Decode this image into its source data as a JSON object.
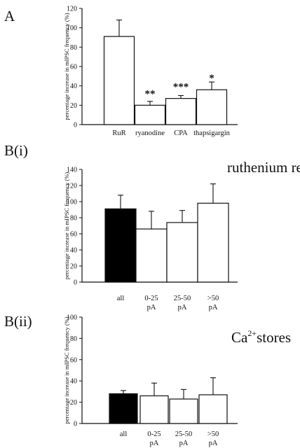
{
  "chart_data": [
    {
      "type": "bar",
      "panel_label": "A",
      "ylabel": "percentage increase in mIPSC frequency (%)",
      "ylim": [
        0,
        120
      ],
      "yticks": [
        0,
        20,
        40,
        60,
        80,
        100,
        120
      ],
      "categories": [
        "RuR",
        "ryanodine",
        "CPA",
        "thapsigargin"
      ],
      "values": [
        91,
        20,
        27,
        36
      ],
      "errors": [
        17,
        4,
        3,
        8
      ],
      "fills": [
        "#ffffff",
        "#ffffff",
        "#ffffff",
        "#ffffff"
      ],
      "significance": [
        "",
        "**",
        "***",
        "*"
      ],
      "annotation": ""
    },
    {
      "type": "bar",
      "panel_label": "B(i)",
      "ylabel": "percentage increase in mIPSC frequency (%)",
      "ylim": [
        0,
        140
      ],
      "yticks": [
        0,
        20,
        40,
        60,
        80,
        100,
        120,
        140
      ],
      "categories": [
        "all",
        "0-25\npA",
        "25-50\npA",
        ">50\npA"
      ],
      "values": [
        91,
        66,
        74,
        98
      ],
      "errors": [
        17,
        22,
        15,
        24
      ],
      "fills": [
        "#000000",
        "#ffffff",
        "#ffffff",
        "#ffffff"
      ],
      "significance": [
        "",
        "",
        "",
        ""
      ],
      "annotation": "ruthenium red"
    },
    {
      "type": "bar",
      "panel_label": "B(ii)",
      "ylabel": "percentage increase in mIPSC frequency (%)",
      "ylim": [
        0,
        100
      ],
      "yticks": [
        0,
        20,
        40,
        60,
        80,
        100
      ],
      "categories": [
        "all",
        "0-25\npA",
        "25-50\npA",
        ">50\npA"
      ],
      "values": [
        28,
        26,
        23,
        27
      ],
      "errors": [
        3,
        12,
        9,
        16
      ],
      "fills": [
        "#000000",
        "#ffffff",
        "#ffffff",
        "#ffffff"
      ],
      "significance": [
        "",
        "",
        "",
        ""
      ],
      "annotation": "Ca2+stores",
      "annotation_parts": {
        "base": "Ca",
        "sup": "2+",
        "rest": "stores"
      }
    }
  ]
}
